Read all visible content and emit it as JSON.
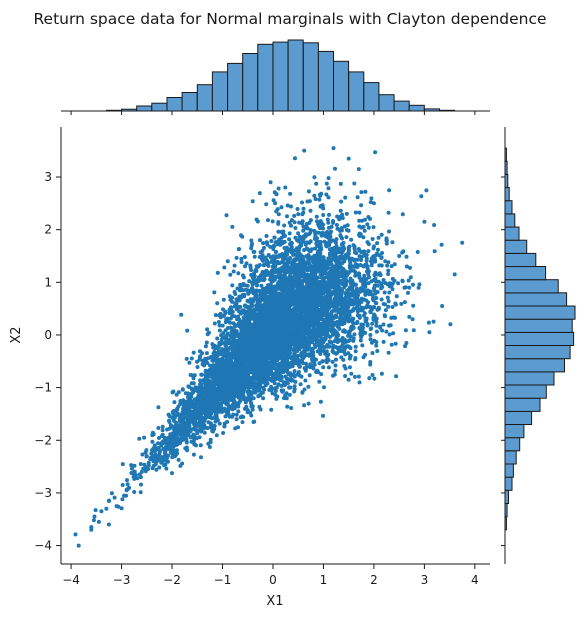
{
  "chart_data": {
    "type": "scatter",
    "title": "Return space data for Normal marginals with Clayton dependence",
    "xlabel": "X1",
    "ylabel": "X2",
    "xlim": [
      -4.2,
      4.3
    ],
    "ylim": [
      -4.35,
      3.95
    ],
    "x_ticks": [
      -4,
      -3,
      -2,
      -1,
      0,
      1,
      2,
      3,
      4
    ],
    "y_ticks": [
      -4,
      -3,
      -2,
      -1,
      0,
      1,
      2,
      3
    ],
    "x_tick_labels": [
      "−4",
      "−3",
      "−2",
      "−1",
      "0",
      "1",
      "2",
      "3",
      "4"
    ],
    "y_tick_labels": [
      "−4",
      "−3",
      "−2",
      "−1",
      "0",
      "1",
      "2",
      "3"
    ],
    "grid": false,
    "legend": "none",
    "point_color": "#1f77b4",
    "hist_color": "#5b9bd0",
    "scatter_sample": {
      "description_values": "representative points read from the plot",
      "x": [
        -3.85,
        -3.6,
        -3.6,
        -3.45,
        -3.4,
        -3.3,
        -3.25,
        -2.95,
        -2.9,
        -2.85,
        -2.6,
        -2.5,
        -2.1,
        -1.8,
        -1.5,
        -1.0,
        -0.6,
        -0.3,
        0.0,
        0.3,
        0.6,
        0.9,
        1.2,
        1.5,
        1.7,
        2.0,
        2.3,
        2.5,
        2.7,
        3.0,
        3.1,
        3.35,
        3.6,
        3.75
      ],
      "y": [
        -4.0,
        -3.65,
        -3.7,
        -3.55,
        -3.35,
        -3.3,
        -3.6,
        -3.05,
        -2.95,
        -2.9,
        -2.6,
        -2.3,
        -2.0,
        -1.55,
        -1.2,
        -0.7,
        -0.25,
        0.15,
        0.4,
        0.6,
        0.85,
        1.0,
        3.55,
        3.35,
        3.15,
        2.5,
        2.75,
        1.5,
        0.9,
        2.15,
        0.05,
        0.55,
        1.15,
        1.75
      ]
    },
    "hist_x": {
      "bin_edges": [
        -3.3,
        -3.0,
        -2.7,
        -2.4,
        -2.1,
        -1.8,
        -1.5,
        -1.2,
        -0.9,
        -0.6,
        -0.3,
        0.0,
        0.3,
        0.6,
        0.9,
        1.2,
        1.5,
        1.8,
        2.1,
        2.4,
        2.7,
        3.0,
        3.3,
        3.6
      ],
      "counts": [
        0.01,
        0.025,
        0.07,
        0.11,
        0.19,
        0.26,
        0.37,
        0.55,
        0.67,
        0.81,
        0.94,
        0.97,
        1.0,
        0.96,
        0.84,
        0.7,
        0.55,
        0.4,
        0.23,
        0.14,
        0.08,
        0.03,
        0.01
      ]
    },
    "hist_y": {
      "bin_edges": [
        -3.7,
        -3.45,
        -3.2,
        -2.95,
        -2.7,
        -2.45,
        -2.2,
        -1.95,
        -1.7,
        -1.45,
        -1.2,
        -0.95,
        -0.7,
        -0.45,
        -0.2,
        0.05,
        0.3,
        0.55,
        0.8,
        1.05,
        1.3,
        1.55,
        1.8,
        2.05,
        2.3,
        2.55,
        2.8,
        3.05,
        3.3,
        3.55
      ],
      "counts": [
        0.02,
        0.03,
        0.05,
        0.1,
        0.12,
        0.16,
        0.21,
        0.27,
        0.38,
        0.5,
        0.59,
        0.7,
        0.85,
        0.93,
        0.98,
        0.96,
        1.0,
        0.88,
        0.76,
        0.58,
        0.44,
        0.31,
        0.2,
        0.14,
        0.1,
        0.06,
        0.04,
        0.03,
        0.02
      ]
    }
  }
}
